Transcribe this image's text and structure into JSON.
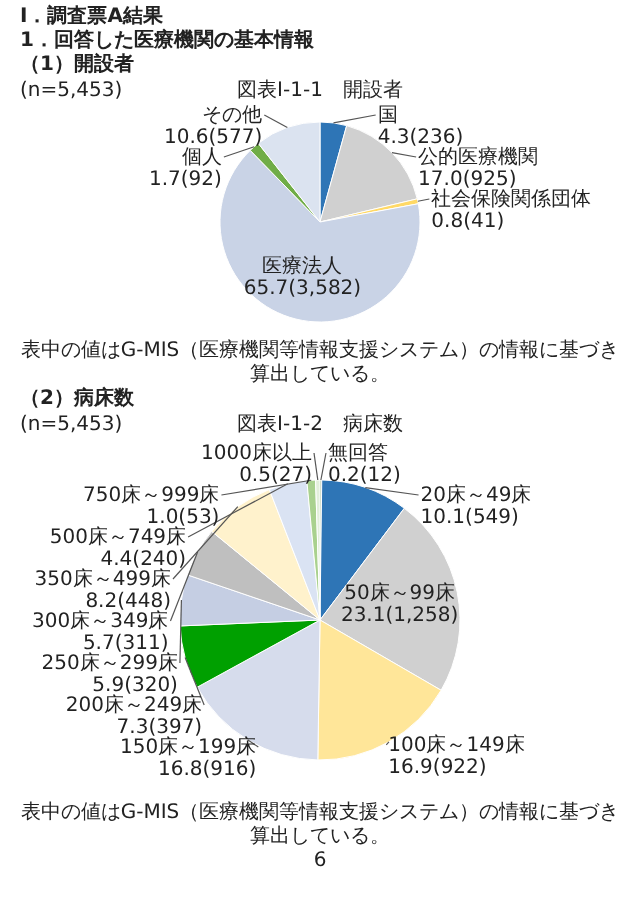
{
  "chart_data": [
    {
      "type": "pie",
      "title": "図表Ⅰ-1-1　開設者",
      "subtitle": "(n=5,453)",
      "categories": [
        "国",
        "公的医療機関",
        "社会保険関係団体",
        "医療法人",
        "個人",
        "その他"
      ],
      "values": [
        4.3,
        17.0,
        0.8,
        65.7,
        1.7,
        10.6
      ],
      "value_labels": [
        "4.3(236)",
        "17.0(925)",
        "0.8(41)",
        "65.7(3,582)",
        "1.7(92)",
        "10.6(577)"
      ],
      "colors": [
        "#2e75b6",
        "#d0d0d0",
        "#ffd966",
        "#c9d3e6",
        "#70ad47",
        "#dbe3f0"
      ],
      "annotations": [
        "Ⅰ．調査票A結果",
        "1．回答した医療機関の基本情報",
        "（1）開設者",
        "表中の値はG-MIS（医療機関等情報支援システム）の情報に基づき算出している。"
      ]
    },
    {
      "type": "pie",
      "title": "図表Ⅰ-1-2　病床数",
      "subtitle": "(n=5,453)",
      "categories": [
        "無回答",
        "20床～49床",
        "50床～99床",
        "100床～149床",
        "150床～199床",
        "200床～249床",
        "250床～299床",
        "300床～349床",
        "350床～499床",
        "500床～749床",
        "750床～999床",
        "1000床以上"
      ],
      "values": [
        0.2,
        10.1,
        23.1,
        16.9,
        16.8,
        7.3,
        5.9,
        5.7,
        8.2,
        4.4,
        1.0,
        0.5
      ],
      "value_labels": [
        "0.2(12)",
        "10.1(549)",
        "23.1(1,258)",
        "16.9(922)",
        "16.8(916)",
        "7.3(397)",
        "5.9(320)",
        "5.7(311)",
        "8.2(448)",
        "4.4(240)",
        "1.0(53)",
        "0.5(27)"
      ],
      "colors": [
        "#548235",
        "#2e75b6",
        "#d0d0d0",
        "#ffe699",
        "#d6dcec",
        "#00a000",
        "#c5cee3",
        "#bfbfbf",
        "#fff2cc",
        "#dae3f3",
        "#a9d18e",
        "#e2efda"
      ],
      "annotations": [
        "（2）病床数",
        "表中の値はG-MIS（医療機関等情報支援システム）の情報に基づき算出している。",
        "6"
      ]
    }
  ]
}
